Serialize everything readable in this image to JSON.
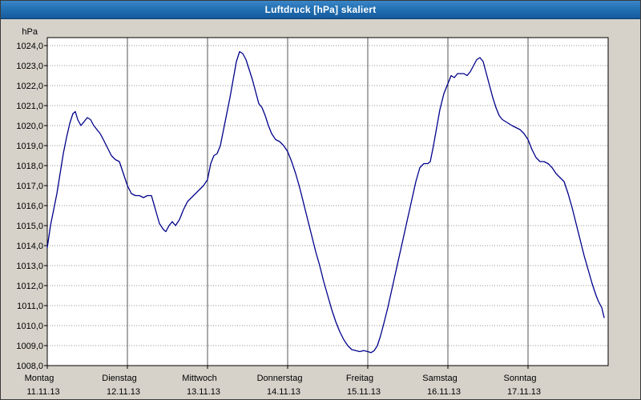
{
  "window": {
    "title": "Luftdruck [hPa] skaliert"
  },
  "colors": {
    "background": "#d6d2ca",
    "plot_background": "#ffffff",
    "plot_border": "#000000",
    "grid_horizontal": "#909090",
    "grid_vertical": "#555555",
    "line": "#00008b",
    "titlebar_blue": "#2371b4",
    "title_text": "#ffffff"
  },
  "chart_data": {
    "type": "line",
    "title": "Luftdruck [hPa] skaliert",
    "ylabel": "hPa",
    "xlabel": "",
    "y_min": 1008,
    "y_max": 1024,
    "y_step": 1,
    "ylim": [
      1008,
      1024
    ],
    "x_range_days": [
      0,
      7
    ],
    "grid": true,
    "legend": "none",
    "y_ticks": [
      "1024,0",
      "1023,0",
      "1022,0",
      "1021,0",
      "1020,0",
      "1019,0",
      "1018,0",
      "1017,0",
      "1016,0",
      "1015,0",
      "1014,0",
      "1013,0",
      "1012,0",
      "1011,0",
      "1010,0",
      "1009,0",
      "1008,0"
    ],
    "x_days": [
      {
        "name": "Montag",
        "date": "11.11.13"
      },
      {
        "name": "Dienstag",
        "date": "12.11.13"
      },
      {
        "name": "Mittwoch",
        "date": "13.11.13"
      },
      {
        "name": "Donnerstag",
        "date": "14.11.13"
      },
      {
        "name": "Freitag",
        "date": "15.11.13"
      },
      {
        "name": "Samstag",
        "date": "16.11.13"
      },
      {
        "name": "Sonntag",
        "date": "17.11.13"
      }
    ],
    "line_color": "#00008b",
    "series": [
      {
        "name": "Luftdruck",
        "unit": "hPa",
        "points": [
          [
            0,
            1013.9
          ],
          [
            0.04,
            1015
          ],
          [
            0.08,
            1015.8
          ],
          [
            0.12,
            1016.6
          ],
          [
            0.16,
            1017.6
          ],
          [
            0.2,
            1018.6
          ],
          [
            0.24,
            1019.4
          ],
          [
            0.28,
            1020.1
          ],
          [
            0.32,
            1020.6
          ],
          [
            0.35,
            1020.7
          ],
          [
            0.38,
            1020.3
          ],
          [
            0.42,
            1020
          ],
          [
            0.46,
            1020.2
          ],
          [
            0.5,
            1020.4
          ],
          [
            0.54,
            1020.3
          ],
          [
            0.58,
            1020
          ],
          [
            0.62,
            1019.8
          ],
          [
            0.66,
            1019.6
          ],
          [
            0.7,
            1019.3
          ],
          [
            0.75,
            1018.9
          ],
          [
            0.8,
            1018.5
          ],
          [
            0.85,
            1018.3
          ],
          [
            0.9,
            1018.2
          ],
          [
            0.95,
            1017.6
          ],
          [
            1,
            1017
          ],
          [
            1.05,
            1016.6
          ],
          [
            1.1,
            1016.5
          ],
          [
            1.15,
            1016.5
          ],
          [
            1.2,
            1016.4
          ],
          [
            1.25,
            1016.5
          ],
          [
            1.3,
            1016.5
          ],
          [
            1.35,
            1015.8
          ],
          [
            1.4,
            1015.1
          ],
          [
            1.45,
            1014.8
          ],
          [
            1.48,
            1014.7
          ],
          [
            1.52,
            1015
          ],
          [
            1.56,
            1015.2
          ],
          [
            1.6,
            1015
          ],
          [
            1.65,
            1015.3
          ],
          [
            1.7,
            1015.8
          ],
          [
            1.75,
            1016.2
          ],
          [
            1.8,
            1016.4
          ],
          [
            1.85,
            1016.6
          ],
          [
            1.9,
            1016.8
          ],
          [
            1.95,
            1017
          ],
          [
            2,
            1017.3
          ],
          [
            2.04,
            1018.1
          ],
          [
            2.08,
            1018.5
          ],
          [
            2.12,
            1018.6
          ],
          [
            2.16,
            1019
          ],
          [
            2.2,
            1019.8
          ],
          [
            2.24,
            1020.6
          ],
          [
            2.28,
            1021.4
          ],
          [
            2.32,
            1022.3
          ],
          [
            2.36,
            1023.2
          ],
          [
            2.4,
            1023.7
          ],
          [
            2.44,
            1023.6
          ],
          [
            2.48,
            1023.3
          ],
          [
            2.52,
            1022.8
          ],
          [
            2.56,
            1022.3
          ],
          [
            2.6,
            1021.7
          ],
          [
            2.64,
            1021.1
          ],
          [
            2.68,
            1020.9
          ],
          [
            2.72,
            1020.5
          ],
          [
            2.76,
            1020
          ],
          [
            2.8,
            1019.6
          ],
          [
            2.85,
            1019.3
          ],
          [
            2.9,
            1019.2
          ],
          [
            2.95,
            1019
          ],
          [
            3,
            1018.7
          ],
          [
            3.05,
            1018.2
          ],
          [
            3.1,
            1017.6
          ],
          [
            3.15,
            1016.9
          ],
          [
            3.2,
            1016.1
          ],
          [
            3.25,
            1015.3
          ],
          [
            3.3,
            1014.5
          ],
          [
            3.35,
            1013.7
          ],
          [
            3.4,
            1013
          ],
          [
            3.45,
            1012.2
          ],
          [
            3.5,
            1011.5
          ],
          [
            3.55,
            1010.8
          ],
          [
            3.6,
            1010.2
          ],
          [
            3.65,
            1009.7
          ],
          [
            3.7,
            1009.3
          ],
          [
            3.75,
            1009
          ],
          [
            3.8,
            1008.8
          ],
          [
            3.85,
            1008.75
          ],
          [
            3.9,
            1008.7
          ],
          [
            3.95,
            1008.75
          ],
          [
            4,
            1008.7
          ],
          [
            4.04,
            1008.65
          ],
          [
            4.08,
            1008.75
          ],
          [
            4.12,
            1009
          ],
          [
            4.16,
            1009.5
          ],
          [
            4.2,
            1010.1
          ],
          [
            4.25,
            1010.9
          ],
          [
            4.3,
            1011.8
          ],
          [
            4.35,
            1012.7
          ],
          [
            4.4,
            1013.6
          ],
          [
            4.45,
            1014.5
          ],
          [
            4.5,
            1015.4
          ],
          [
            4.55,
            1016.3
          ],
          [
            4.6,
            1017.2
          ],
          [
            4.65,
            1017.9
          ],
          [
            4.7,
            1018.1
          ],
          [
            4.75,
            1018.1
          ],
          [
            4.78,
            1018.2
          ],
          [
            4.82,
            1019
          ],
          [
            4.86,
            1019.9
          ],
          [
            4.9,
            1020.8
          ],
          [
            4.95,
            1021.6
          ],
          [
            5,
            1022.1
          ],
          [
            5.04,
            1022.5
          ],
          [
            5.08,
            1022.4
          ],
          [
            5.12,
            1022.6
          ],
          [
            5.16,
            1022.6
          ],
          [
            5.2,
            1022.6
          ],
          [
            5.24,
            1022.5
          ],
          [
            5.28,
            1022.7
          ],
          [
            5.32,
            1023
          ],
          [
            5.36,
            1023.3
          ],
          [
            5.4,
            1023.4
          ],
          [
            5.44,
            1023.2
          ],
          [
            5.48,
            1022.6
          ],
          [
            5.52,
            1022
          ],
          [
            5.56,
            1021.4
          ],
          [
            5.6,
            1020.9
          ],
          [
            5.64,
            1020.5
          ],
          [
            5.68,
            1020.3
          ],
          [
            5.72,
            1020.2
          ],
          [
            5.76,
            1020.1
          ],
          [
            5.8,
            1020
          ],
          [
            5.85,
            1019.9
          ],
          [
            5.9,
            1019.8
          ],
          [
            5.95,
            1019.6
          ],
          [
            6,
            1019.3
          ],
          [
            6.05,
            1018.8
          ],
          [
            6.1,
            1018.4
          ],
          [
            6.15,
            1018.2
          ],
          [
            6.2,
            1018.2
          ],
          [
            6.25,
            1018.1
          ],
          [
            6.3,
            1017.9
          ],
          [
            6.35,
            1017.6
          ],
          [
            6.4,
            1017.4
          ],
          [
            6.45,
            1017.2
          ],
          [
            6.5,
            1016.6
          ],
          [
            6.55,
            1015.9
          ],
          [
            6.6,
            1015.1
          ],
          [
            6.65,
            1014.3
          ],
          [
            6.7,
            1013.5
          ],
          [
            6.75,
            1012.8
          ],
          [
            6.8,
            1012.1
          ],
          [
            6.85,
            1011.5
          ],
          [
            6.88,
            1011.2
          ],
          [
            6.92,
            1010.9
          ],
          [
            6.95,
            1010.4
          ]
        ]
      }
    ]
  }
}
